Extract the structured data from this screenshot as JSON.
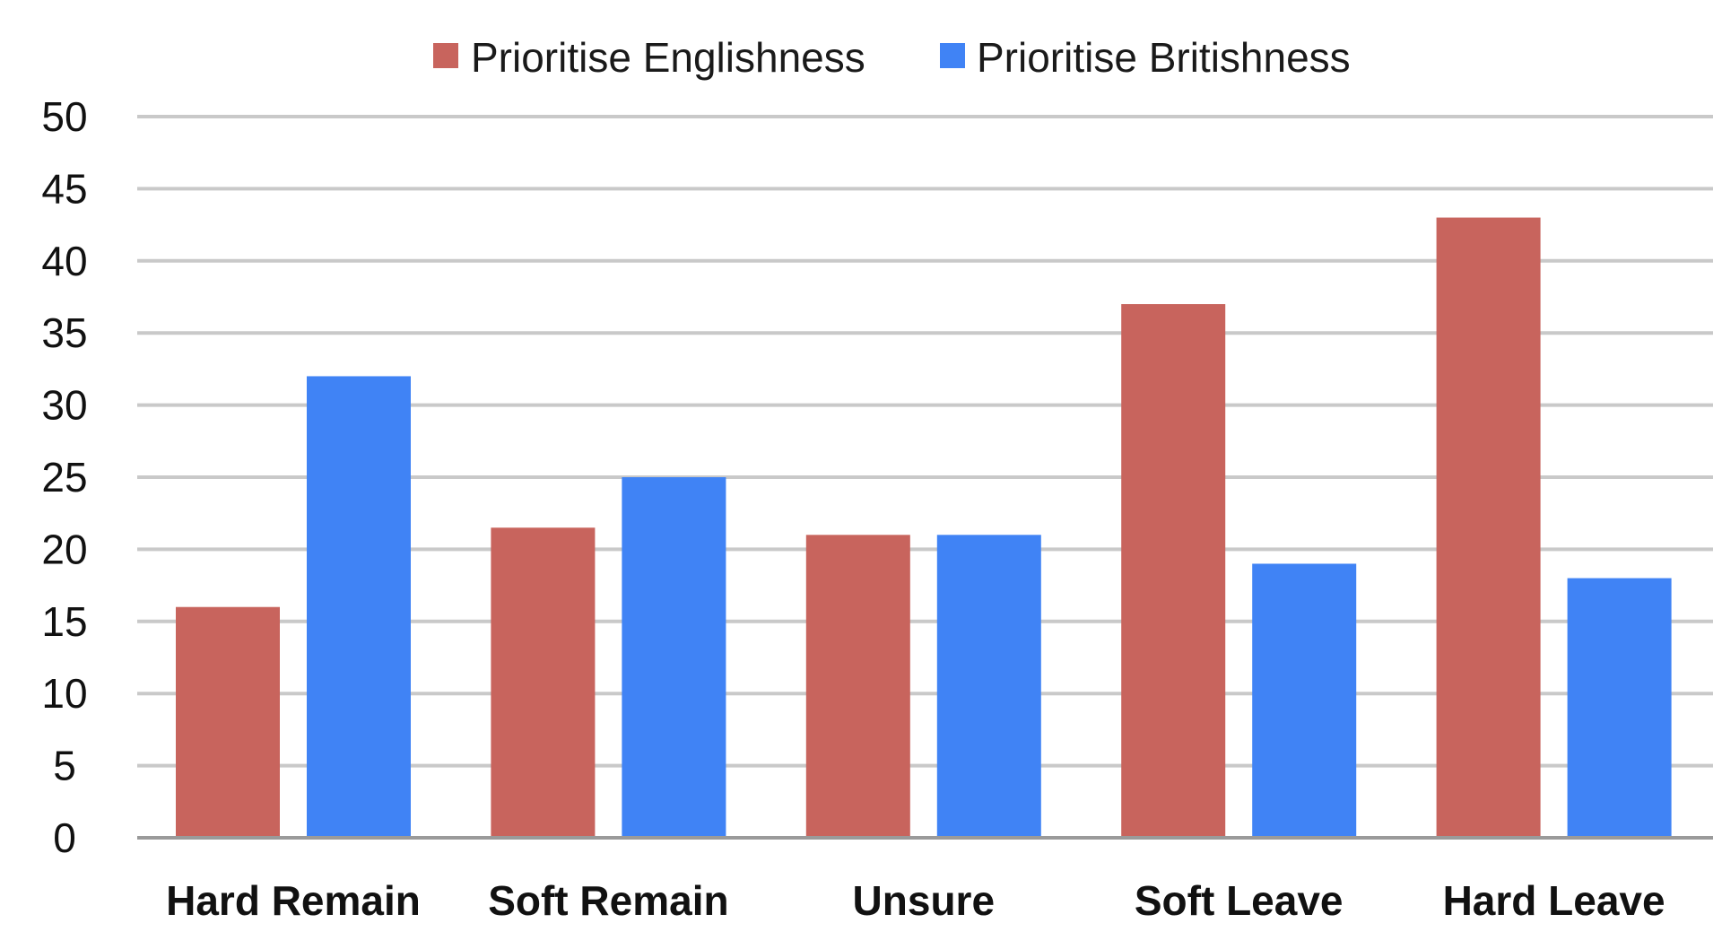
{
  "chart_data": {
    "type": "bar",
    "title": "",
    "xlabel": "",
    "ylabel": "",
    "categories": [
      "Hard Remain",
      "Soft Remain",
      "Unsure",
      "Soft Leave",
      "Hard Leave"
    ],
    "series": [
      {
        "name": "Prioritise Englishness",
        "color": "#c8645d",
        "values": [
          16,
          21.5,
          21,
          37,
          43
        ]
      },
      {
        "name": "Prioritise Britishness",
        "color": "#4083f5",
        "values": [
          32,
          25,
          21,
          19,
          18
        ]
      }
    ],
    "ylim": [
      0,
      50
    ],
    "yticks": [
      "0",
      "5",
      "10",
      "15",
      "20",
      "25",
      "30",
      "35",
      "40",
      "45",
      "50"
    ],
    "grid": true,
    "legend_position": "top-center"
  }
}
